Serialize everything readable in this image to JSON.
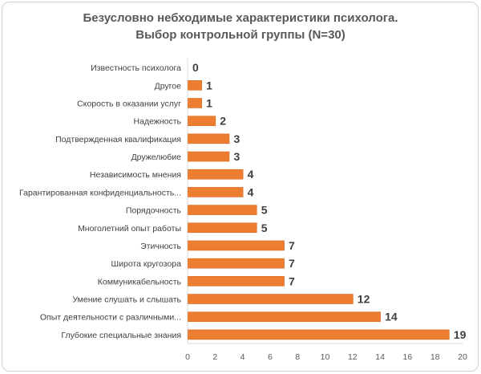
{
  "chart_data": {
    "type": "bar",
    "orientation": "horizontal",
    "title": "Безусловно небходимые характеристики психолога.",
    "subtitle": "Выбор контрольной группы (N=30)",
    "categories": [
      "Известность психолога",
      "Другое",
      "Скорость в оказании услуг",
      "Надежность",
      "Подтвержденная квалификация",
      "Дружелюбие",
      "Независимость мнения",
      "Гарантированная конфиденциальность...",
      "Порядочность",
      "Многолетний опыт работы",
      "Этичность",
      "Широта кругозора",
      "Коммуникабельность",
      "Умение слушать и слышать",
      "Опыт деятельности с различными...",
      "Глубокие специальные знания"
    ],
    "values": [
      0,
      1,
      1,
      2,
      3,
      3,
      4,
      4,
      5,
      5,
      7,
      7,
      7,
      12,
      14,
      19
    ],
    "data_labels": [
      "0",
      "1",
      "1",
      "2",
      "3",
      "3",
      "4",
      "4",
      "5",
      "5",
      "7",
      "7",
      "7",
      "12",
      "14",
      "19"
    ],
    "x_ticks": [
      "0",
      "2",
      "4",
      "6",
      "8",
      "10",
      "12",
      "14",
      "16",
      "18",
      "20"
    ],
    "xlim": [
      0,
      20
    ],
    "grid": false,
    "legend": "none",
    "colors": {
      "bar": "#ed7d31",
      "bar_edge": "#d96a1e"
    }
  }
}
